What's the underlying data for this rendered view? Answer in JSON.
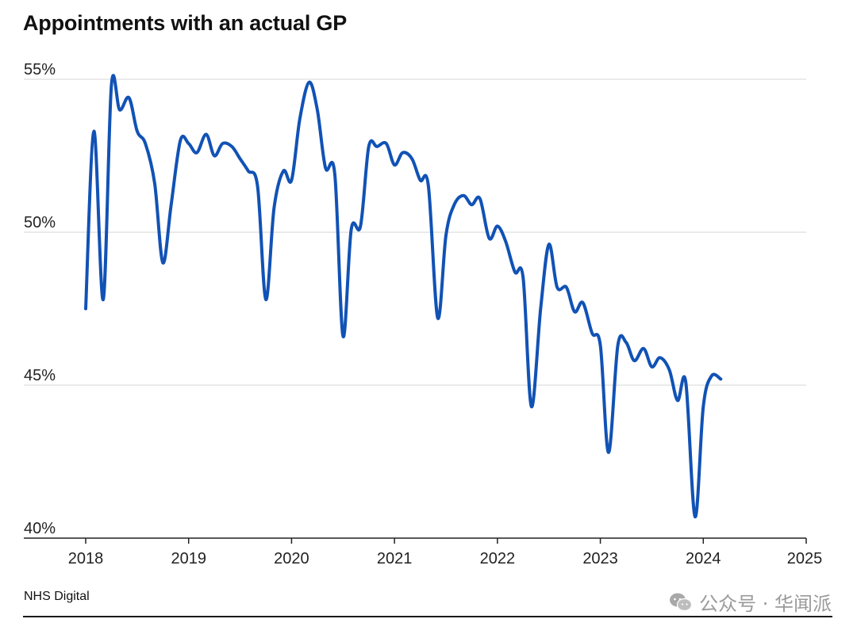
{
  "chart_data": {
    "type": "line",
    "title": "Appointments with an actual GP",
    "xlabel": "",
    "ylabel": "",
    "ylim": [
      40,
      55
    ],
    "xlim": [
      2018,
      2025
    ],
    "y_ticks": [
      {
        "value": 55,
        "label": "55%"
      },
      {
        "value": 50,
        "label": "50%"
      },
      {
        "value": 45,
        "label": "45%"
      },
      {
        "value": 40,
        "label": "40%"
      }
    ],
    "x_ticks": [
      {
        "value": 2018,
        "label": "2018"
      },
      {
        "value": 2019,
        "label": "2019"
      },
      {
        "value": 2020,
        "label": "2020"
      },
      {
        "value": 2021,
        "label": "2021"
      },
      {
        "value": 2022,
        "label": "2022"
      },
      {
        "value": 2023,
        "label": "2023"
      },
      {
        "value": 2024,
        "label": "2024"
      },
      {
        "value": 2025,
        "label": "2025"
      }
    ],
    "grid": true,
    "series": [
      {
        "name": "Appointments with an actual GP",
        "color": "#1152b5",
        "points": [
          [
            2018.0,
            47.5
          ],
          [
            2018.08,
            53.3
          ],
          [
            2018.17,
            47.8
          ],
          [
            2018.25,
            54.8
          ],
          [
            2018.33,
            54.0
          ],
          [
            2018.42,
            54.4
          ],
          [
            2018.5,
            53.3
          ],
          [
            2018.58,
            52.9
          ],
          [
            2018.67,
            51.6
          ],
          [
            2018.75,
            49.0
          ],
          [
            2018.83,
            50.9
          ],
          [
            2018.92,
            53.0
          ],
          [
            2019.0,
            52.9
          ],
          [
            2019.08,
            52.6
          ],
          [
            2019.17,
            53.2
          ],
          [
            2019.25,
            52.5
          ],
          [
            2019.33,
            52.9
          ],
          [
            2019.42,
            52.8
          ],
          [
            2019.5,
            52.4
          ],
          [
            2019.58,
            52.0
          ],
          [
            2019.67,
            51.5
          ],
          [
            2019.75,
            47.8
          ],
          [
            2019.83,
            50.8
          ],
          [
            2019.92,
            52.0
          ],
          [
            2020.0,
            51.7
          ],
          [
            2020.08,
            53.7
          ],
          [
            2020.17,
            54.9
          ],
          [
            2020.25,
            54.0
          ],
          [
            2020.33,
            52.1
          ],
          [
            2020.42,
            51.9
          ],
          [
            2020.5,
            46.6
          ],
          [
            2020.58,
            50.1
          ],
          [
            2020.67,
            50.2
          ],
          [
            2020.75,
            52.8
          ],
          [
            2020.83,
            52.8
          ],
          [
            2020.92,
            52.9
          ],
          [
            2021.0,
            52.2
          ],
          [
            2021.08,
            52.6
          ],
          [
            2021.17,
            52.4
          ],
          [
            2021.25,
            51.7
          ],
          [
            2021.33,
            51.5
          ],
          [
            2021.42,
            47.2
          ],
          [
            2021.5,
            49.9
          ],
          [
            2021.58,
            50.9
          ],
          [
            2021.67,
            51.2
          ],
          [
            2021.75,
            50.9
          ],
          [
            2021.83,
            51.1
          ],
          [
            2021.92,
            49.8
          ],
          [
            2022.0,
            50.2
          ],
          [
            2022.08,
            49.7
          ],
          [
            2022.17,
            48.7
          ],
          [
            2022.25,
            48.5
          ],
          [
            2022.33,
            44.3
          ],
          [
            2022.42,
            47.5
          ],
          [
            2022.5,
            49.6
          ],
          [
            2022.58,
            48.2
          ],
          [
            2022.67,
            48.2
          ],
          [
            2022.75,
            47.4
          ],
          [
            2022.83,
            47.7
          ],
          [
            2022.92,
            46.7
          ],
          [
            2023.0,
            46.3
          ],
          [
            2023.08,
            42.8
          ],
          [
            2023.17,
            46.3
          ],
          [
            2023.25,
            46.4
          ],
          [
            2023.33,
            45.8
          ],
          [
            2023.42,
            46.2
          ],
          [
            2023.5,
            45.6
          ],
          [
            2023.58,
            45.9
          ],
          [
            2023.67,
            45.5
          ],
          [
            2023.75,
            44.5
          ],
          [
            2023.83,
            45.1
          ],
          [
            2023.92,
            40.7
          ],
          [
            2024.0,
            44.3
          ],
          [
            2024.08,
            45.3
          ],
          [
            2024.17,
            45.2
          ]
        ]
      }
    ],
    "source": "NHS Digital"
  },
  "watermark": {
    "text": "公众号 · 华闻派",
    "icon": "wechat-icon"
  },
  "colors": {
    "line": "#1152b5",
    "grid": "#d4d4d4",
    "axis": "#222222",
    "watermark": "#9a9a9a"
  }
}
